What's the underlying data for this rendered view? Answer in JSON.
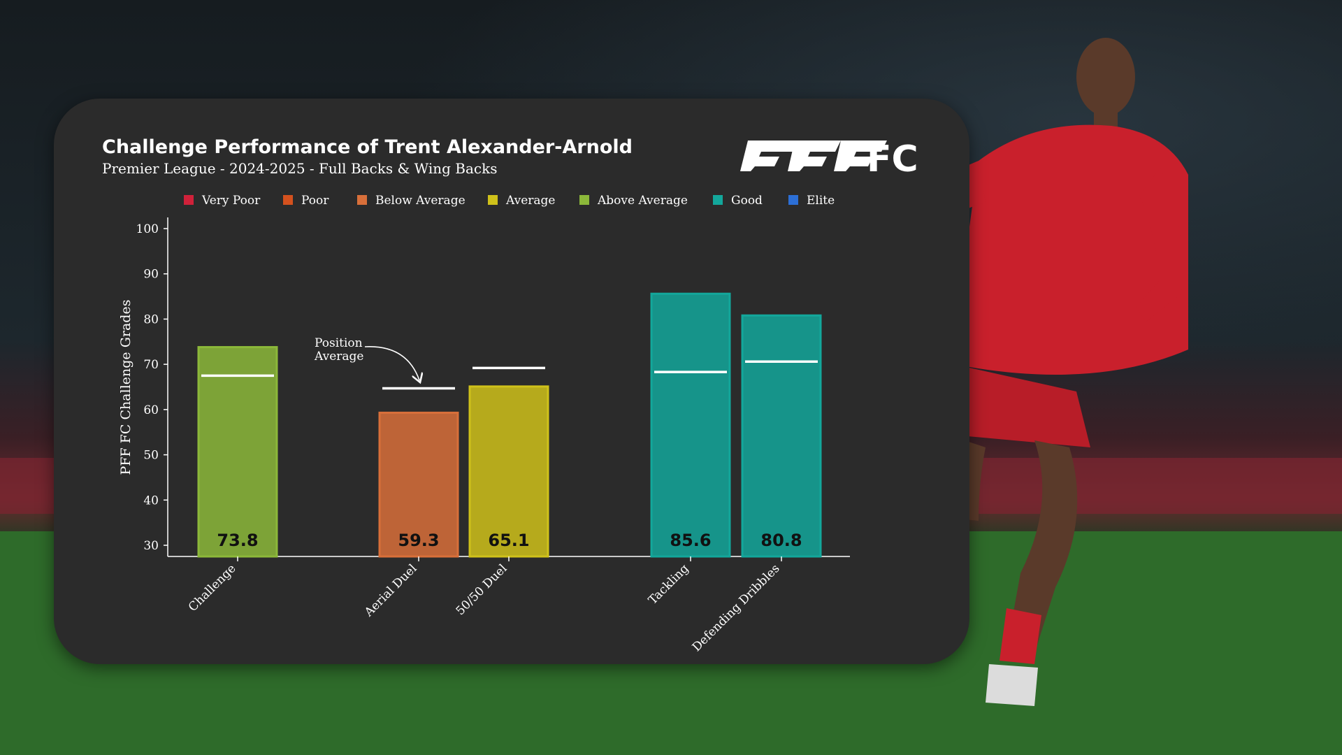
{
  "logo": {
    "brand": "PFF",
    "suffix": "FC"
  },
  "chart_data": {
    "type": "bar",
    "title": "Challenge Performance of Trent Alexander-Arnold",
    "subtitle": "Premier League - 2024-2025 - Full Backs & Wing Backs",
    "ylabel": "PFF FC Challenge Grades",
    "xlabel": "",
    "ylim": [
      30,
      100
    ],
    "yticks": [
      30,
      40,
      50,
      60,
      70,
      80,
      90,
      100
    ],
    "grid": false,
    "legend_position": "top",
    "legend": [
      {
        "label": "Very Poor",
        "color": "#d0213a"
      },
      {
        "label": "Poor",
        "color": "#d4511e"
      },
      {
        "label": "Below Average",
        "color": "#d86f3a"
      },
      {
        "label": "Average",
        "color": "#cfc11a"
      },
      {
        "label": "Above Average",
        "color": "#8cb83a"
      },
      {
        "label": "Good",
        "color": "#13a79b"
      },
      {
        "label": "Elite",
        "color": "#2c6fd6"
      }
    ],
    "categories": [
      "Challenge",
      "Aerial Duel",
      "50/50 Duel",
      "Tackling",
      "Defending Dribbles"
    ],
    "values": [
      73.8,
      59.3,
      65.1,
      85.6,
      80.8
    ],
    "position_average": [
      67.5,
      64.7,
      69.2,
      68.3,
      70.6
    ],
    "bar_colors": [
      "#8cb83a",
      "#d86f3a",
      "#cfc11a",
      "#13a79b",
      "#13a79b"
    ],
    "annotation": {
      "line1": "Position",
      "line2": "Average"
    }
  }
}
